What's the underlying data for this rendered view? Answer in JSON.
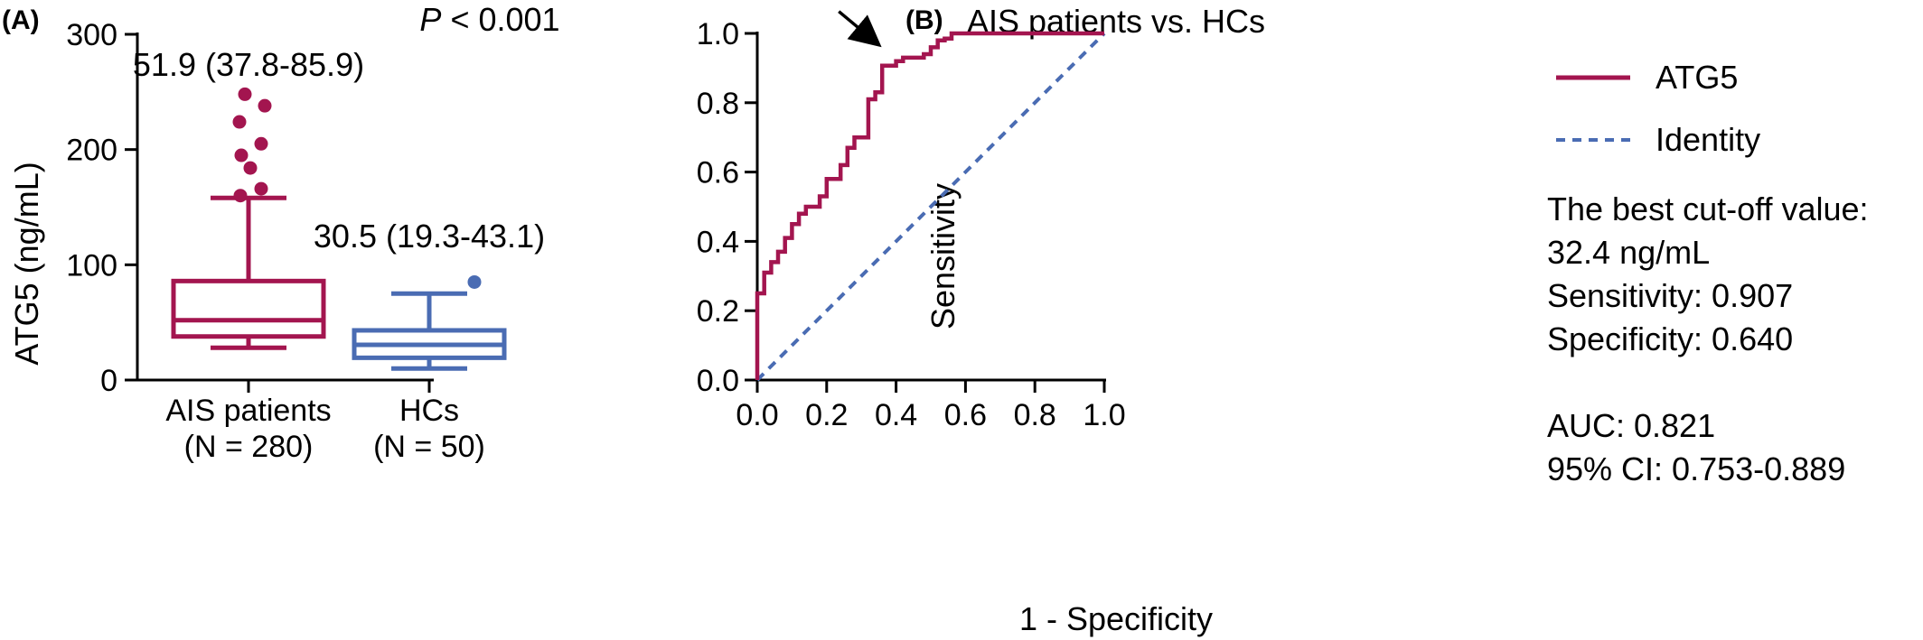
{
  "chart_data": [
    {
      "panel": "(A)",
      "type": "box",
      "title": "P < 0.001",
      "title_italic": "P",
      "title_rest": " < 0.001",
      "ylabel": "ATG5 (ng/mL)",
      "ylim": [
        0,
        300
      ],
      "yticks": [
        "0",
        "100",
        "200",
        "300"
      ],
      "groups": [
        {
          "label": "AIS patients",
          "sublabel": "(N = 280)",
          "annotation": "51.9 (37.8-85.9)",
          "color": "#a3154f",
          "whisker_low": 28,
          "q1": 37.8,
          "median": 51.9,
          "q3": 85.9,
          "whisker_high": 158,
          "outliers": [
            160,
            166,
            184,
            195,
            205,
            224,
            238,
            248
          ]
        },
        {
          "label": "HCs",
          "sublabel": "(N = 50)",
          "annotation": "30.5 (19.3-43.1)",
          "color": "#4a6cb3",
          "whisker_low": 10,
          "q1": 19.3,
          "median": 30.5,
          "q3": 43.1,
          "whisker_high": 75,
          "outliers": [
            85
          ]
        }
      ]
    },
    {
      "panel": "(B)",
      "type": "line",
      "title": "AIS patients vs. HCs",
      "xlabel": "1 - Specificity",
      "ylabel": "Sensitivity",
      "xlim": [
        0,
        1
      ],
      "ylim": [
        0,
        1
      ],
      "xticks": [
        "0.0",
        "0.2",
        "0.4",
        "0.6",
        "0.8",
        "1.0"
      ],
      "yticks": [
        "0.0",
        "0.2",
        "0.4",
        "0.6",
        "0.8",
        "1.0"
      ],
      "arrow_point": [
        0.36,
        0.907
      ],
      "series": [
        {
          "name": "ATG5",
          "color": "#a3154f",
          "style": "solid",
          "x": [
            0,
            0,
            0.02,
            0.02,
            0.04,
            0.04,
            0.06,
            0.06,
            0.08,
            0.08,
            0.1,
            0.1,
            0.12,
            0.12,
            0.14,
            0.14,
            0.18,
            0.18,
            0.2,
            0.2,
            0.24,
            0.24,
            0.26,
            0.26,
            0.28,
            0.28,
            0.32,
            0.32,
            0.34,
            0.34,
            0.36,
            0.36,
            0.4,
            0.4,
            0.42,
            0.42,
            0.48,
            0.48,
            0.5,
            0.5,
            0.52,
            0.52,
            0.54,
            0.54,
            0.56,
            0.56,
            0.58,
            0.58,
            1.0
          ],
          "y": [
            0,
            0.25,
            0.25,
            0.31,
            0.31,
            0.34,
            0.34,
            0.37,
            0.37,
            0.41,
            0.41,
            0.45,
            0.45,
            0.48,
            0.48,
            0.5,
            0.5,
            0.53,
            0.53,
            0.58,
            0.58,
            0.62,
            0.62,
            0.67,
            0.67,
            0.7,
            0.7,
            0.81,
            0.81,
            0.83,
            0.83,
            0.907,
            0.907,
            0.92,
            0.92,
            0.93,
            0.93,
            0.94,
            0.94,
            0.96,
            0.96,
            0.98,
            0.98,
            0.985,
            0.985,
            1.0,
            1.0,
            1.0,
            1.0
          ]
        },
        {
          "name": "Identity",
          "color": "#4a6cb3",
          "style": "dashed",
          "x": [
            0,
            1
          ],
          "y": [
            0,
            1
          ]
        }
      ],
      "legend_position": "right",
      "info": {
        "line1": "The best cut-off value:",
        "line2": "32.4 ng/mL",
        "line3": "Sensitivity: 0.907",
        "line4": "Specificity: 0.640",
        "line5": "AUC: 0.821",
        "line6": "95% CI: 0.753-0.889"
      }
    }
  ]
}
